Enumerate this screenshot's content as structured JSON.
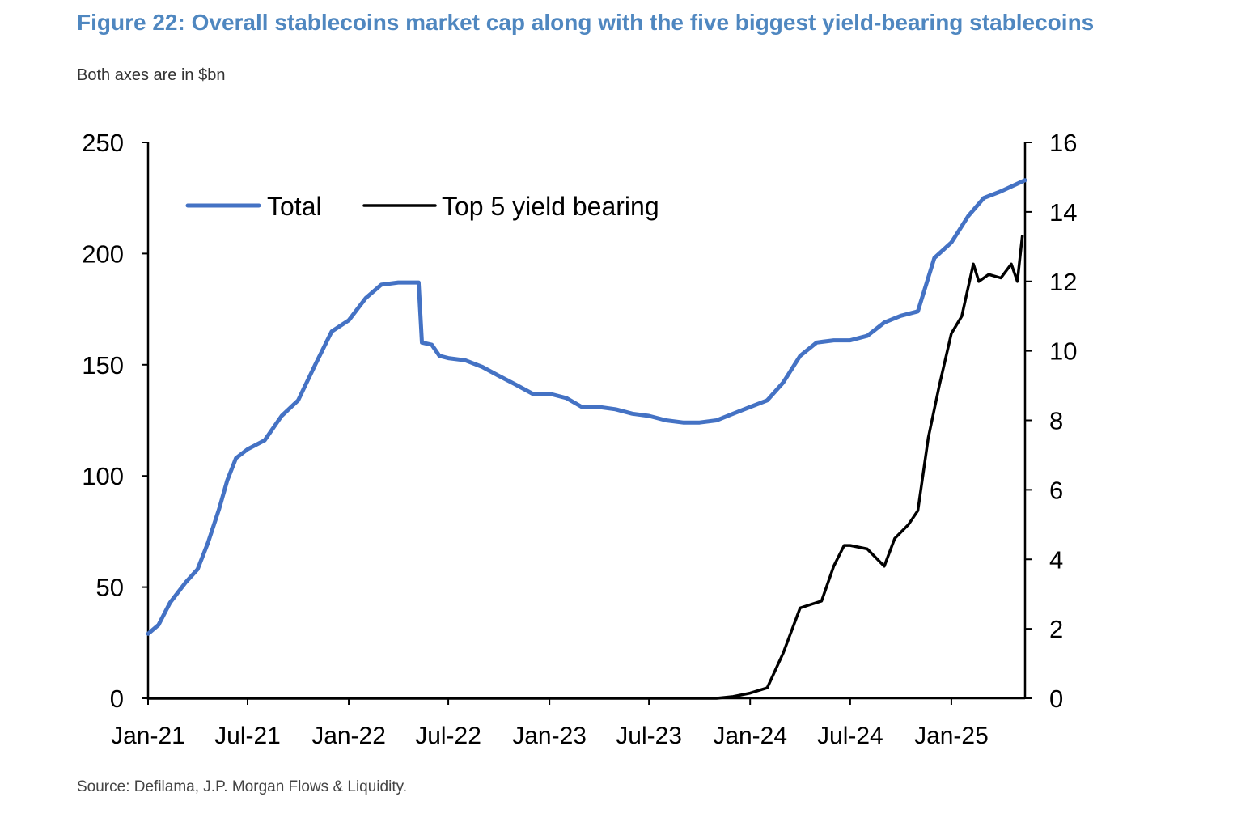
{
  "header": {
    "title": "Figure 22: Overall stablecoins market cap along with the five biggest yield-bearing stablecoins",
    "subtitle": "Both axes are in $bn"
  },
  "footer": {
    "source": "Source: Defilama, J.P. Morgan Flows & Liquidity."
  },
  "chart_data": {
    "type": "line",
    "x_axis": {
      "type": "date",
      "range": [
        "2021-01-01",
        "2025-05-15"
      ],
      "ticks": [
        {
          "date": "2021-01-01",
          "label": "Jan-21"
        },
        {
          "date": "2021-07-01",
          "label": "Jul-21"
        },
        {
          "date": "2022-01-01",
          "label": "Jan-22"
        },
        {
          "date": "2022-07-01",
          "label": "Jul-22"
        },
        {
          "date": "2023-01-01",
          "label": "Jan-23"
        },
        {
          "date": "2023-07-01",
          "label": "Jul-23"
        },
        {
          "date": "2024-01-01",
          "label": "Jan-24"
        },
        {
          "date": "2024-07-01",
          "label": "Jul-24"
        },
        {
          "date": "2025-01-01",
          "label": "Jan-25"
        }
      ]
    },
    "y_left": {
      "ylim": [
        0,
        250
      ],
      "ticks": [
        0,
        50,
        100,
        150,
        200,
        250
      ]
    },
    "y_right": {
      "ylim": [
        0,
        16
      ],
      "ticks": [
        0,
        2,
        4,
        6,
        8,
        10,
        12,
        14,
        16
      ]
    },
    "grid": false,
    "legend": {
      "placement": "top-left"
    },
    "colors": {
      "total": "#4472c4",
      "top5": "#000000",
      "axis": "#000000"
    },
    "series": [
      {
        "name": "Total",
        "axis": "left",
        "points": [
          [
            "2021-01-01",
            29
          ],
          [
            "2021-01-20",
            33
          ],
          [
            "2021-02-10",
            43
          ],
          [
            "2021-03-10",
            52
          ],
          [
            "2021-04-01",
            58
          ],
          [
            "2021-04-20",
            70
          ],
          [
            "2021-05-10",
            85
          ],
          [
            "2021-05-25",
            98
          ],
          [
            "2021-06-10",
            108
          ],
          [
            "2021-07-01",
            112
          ],
          [
            "2021-08-01",
            116
          ],
          [
            "2021-09-01",
            127
          ],
          [
            "2021-10-01",
            134
          ],
          [
            "2021-11-01",
            150
          ],
          [
            "2021-12-01",
            165
          ],
          [
            "2022-01-01",
            170
          ],
          [
            "2022-02-01",
            180
          ],
          [
            "2022-03-01",
            186
          ],
          [
            "2022-04-01",
            187
          ],
          [
            "2022-05-08",
            187
          ],
          [
            "2022-05-14",
            160
          ],
          [
            "2022-06-01",
            159
          ],
          [
            "2022-06-15",
            154
          ],
          [
            "2022-07-01",
            153
          ],
          [
            "2022-08-01",
            152
          ],
          [
            "2022-09-01",
            149
          ],
          [
            "2022-10-01",
            145
          ],
          [
            "2022-11-01",
            141
          ],
          [
            "2022-12-01",
            137
          ],
          [
            "2023-01-01",
            137
          ],
          [
            "2023-02-01",
            135
          ],
          [
            "2023-03-01",
            131
          ],
          [
            "2023-04-01",
            131
          ],
          [
            "2023-05-01",
            130
          ],
          [
            "2023-06-01",
            128
          ],
          [
            "2023-07-01",
            127
          ],
          [
            "2023-08-01",
            125
          ],
          [
            "2023-09-01",
            124
          ],
          [
            "2023-10-01",
            124
          ],
          [
            "2023-11-01",
            125
          ],
          [
            "2023-12-01",
            128
          ],
          [
            "2024-01-01",
            131
          ],
          [
            "2024-02-01",
            134
          ],
          [
            "2024-03-01",
            142
          ],
          [
            "2024-04-01",
            154
          ],
          [
            "2024-05-01",
            160
          ],
          [
            "2024-06-01",
            161
          ],
          [
            "2024-07-01",
            161
          ],
          [
            "2024-08-01",
            163
          ],
          [
            "2024-09-01",
            169
          ],
          [
            "2024-10-01",
            172
          ],
          [
            "2024-11-01",
            174
          ],
          [
            "2024-12-01",
            198
          ],
          [
            "2025-01-01",
            205
          ],
          [
            "2025-02-01",
            217
          ],
          [
            "2025-03-01",
            225
          ],
          [
            "2025-04-01",
            228
          ],
          [
            "2025-05-15",
            233
          ]
        ]
      },
      {
        "name": "Top 5 yield bearing",
        "axis": "right",
        "points": [
          [
            "2021-01-01",
            0
          ],
          [
            "2023-11-01",
            0
          ],
          [
            "2023-12-01",
            0.05
          ],
          [
            "2024-01-01",
            0.15
          ],
          [
            "2024-02-01",
            0.3
          ],
          [
            "2024-03-01",
            1.3
          ],
          [
            "2024-04-01",
            2.6
          ],
          [
            "2024-04-20",
            2.7
          ],
          [
            "2024-05-10",
            2.8
          ],
          [
            "2024-06-01",
            3.8
          ],
          [
            "2024-06-20",
            4.4
          ],
          [
            "2024-07-01",
            4.4
          ],
          [
            "2024-08-01",
            4.3
          ],
          [
            "2024-09-01",
            3.8
          ],
          [
            "2024-09-20",
            4.6
          ],
          [
            "2024-10-15",
            5.0
          ],
          [
            "2024-11-01",
            5.4
          ],
          [
            "2024-11-20",
            7.5
          ],
          [
            "2024-12-10",
            9.0
          ],
          [
            "2025-01-01",
            10.5
          ],
          [
            "2025-01-20",
            11.0
          ],
          [
            "2025-02-10",
            12.5
          ],
          [
            "2025-02-20",
            12.0
          ],
          [
            "2025-03-10",
            12.2
          ],
          [
            "2025-04-01",
            12.1
          ],
          [
            "2025-04-20",
            12.5
          ],
          [
            "2025-05-01",
            12.0
          ],
          [
            "2025-05-10",
            13.3
          ]
        ]
      }
    ]
  }
}
